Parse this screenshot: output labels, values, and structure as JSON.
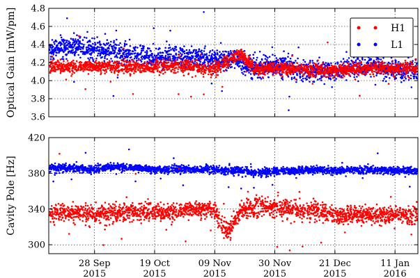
{
  "chart_data": {
    "type": "scatter",
    "x_axis": {
      "type": "date",
      "tick_labels": [
        {
          "date": "2015-09-28",
          "line1": "28 Sep",
          "line2": "2015"
        },
        {
          "date": "2015-10-19",
          "line1": "19 Oct",
          "line2": "2015"
        },
        {
          "date": "2015-11-09",
          "line1": "09 Nov",
          "line2": "2015"
        },
        {
          "date": "2015-11-30",
          "line1": "30 Nov",
          "line2": "2015"
        },
        {
          "date": "2015-12-21",
          "line1": "21 Dec",
          "line2": "2015"
        },
        {
          "date": "2016-01-11",
          "line1": "11 Jan",
          "line2": "2016"
        }
      ],
      "xlim": [
        "2015-09-12",
        "2016-01-19"
      ],
      "grid": true
    },
    "colors": {
      "H1": "#ff0000",
      "L1": "#0000ff"
    },
    "legend": {
      "placement": "top-right",
      "entries": [
        "H1",
        "L1"
      ]
    },
    "panels": [
      {
        "id": "optical-gain",
        "ylabel": "Optical Gain [mW/pm]",
        "ylim": [
          3.6,
          4.8
        ],
        "yticks": [
          "3.6",
          "3.8",
          "4.0",
          "4.2",
          "4.4",
          "4.6",
          "4.8"
        ],
        "grid": true,
        "series": [
          {
            "name": "H1",
            "trend": [
              [
                "2015-09-12",
                4.15
              ],
              [
                "2015-09-20",
                4.16
              ],
              [
                "2015-09-28",
                4.15
              ],
              [
                "2015-10-05",
                4.16
              ],
              [
                "2015-10-12",
                4.15
              ],
              [
                "2015-10-19",
                4.14
              ],
              [
                "2015-10-26",
                4.17
              ],
              [
                "2015-11-02",
                4.14
              ],
              [
                "2015-11-09",
                4.13
              ],
              [
                "2015-11-14",
                4.22
              ],
              [
                "2015-11-18",
                4.3
              ],
              [
                "2015-11-23",
                4.12
              ],
              [
                "2015-11-30",
                4.14
              ],
              [
                "2015-12-07",
                4.13
              ],
              [
                "2015-12-14",
                4.12
              ],
              [
                "2015-12-21",
                4.11
              ],
              [
                "2015-12-28",
                4.13
              ],
              [
                "2016-01-04",
                4.14
              ],
              [
                "2016-01-11",
                4.13
              ],
              [
                "2016-01-19",
                4.14
              ]
            ],
            "spread": 0.05
          },
          {
            "name": "L1",
            "trend": [
              [
                "2015-09-12",
                4.33
              ],
              [
                "2015-09-20",
                4.38
              ],
              [
                "2015-09-28",
                4.35
              ],
              [
                "2015-10-05",
                4.32
              ],
              [
                "2015-10-12",
                4.29
              ],
              [
                "2015-10-19",
                4.25
              ],
              [
                "2015-10-26",
                4.27
              ],
              [
                "2015-11-02",
                4.25
              ],
              [
                "2015-11-09",
                4.22
              ],
              [
                "2015-11-16",
                4.24
              ],
              [
                "2015-11-23",
                4.15
              ],
              [
                "2015-11-30",
                4.17
              ],
              [
                "2015-12-07",
                4.13
              ],
              [
                "2015-12-14",
                4.12
              ],
              [
                "2015-12-21",
                4.1
              ],
              [
                "2015-12-28",
                4.14
              ],
              [
                "2016-01-04",
                4.16
              ],
              [
                "2016-01-11",
                4.11
              ],
              [
                "2016-01-19",
                4.12
              ]
            ],
            "spread": 0.08
          }
        ]
      },
      {
        "id": "cavity-pole",
        "ylabel": "Cavity Pole [Hz]",
        "ylim": [
          290,
          420
        ],
        "yticks": [
          "300",
          "340",
          "380",
          "420"
        ],
        "grid": true,
        "series": [
          {
            "name": "H1",
            "trend": [
              [
                "2015-09-12",
                335
              ],
              [
                "2015-09-20",
                336
              ],
              [
                "2015-09-28",
                334
              ],
              [
                "2015-10-05",
                336
              ],
              [
                "2015-10-12",
                337
              ],
              [
                "2015-10-19",
                336
              ],
              [
                "2015-10-26",
                338
              ],
              [
                "2015-11-02",
                339
              ],
              [
                "2015-11-09",
                340
              ],
              [
                "2015-11-12",
                318
              ],
              [
                "2015-11-14",
                316
              ],
              [
                "2015-11-18",
                340
              ],
              [
                "2015-11-23",
                343
              ],
              [
                "2015-11-30",
                342
              ],
              [
                "2015-12-07",
                338
              ],
              [
                "2015-12-14",
                339
              ],
              [
                "2015-12-21",
                332
              ],
              [
                "2015-12-28",
                334
              ],
              [
                "2016-01-04",
                333
              ],
              [
                "2016-01-11",
                334
              ],
              [
                "2016-01-19",
                333
              ]
            ],
            "spread": 7
          },
          {
            "name": "L1",
            "trend": [
              [
                "2015-09-12",
                386
              ],
              [
                "2015-09-20",
                386
              ],
              [
                "2015-09-28",
                384
              ],
              [
                "2015-10-05",
                388
              ],
              [
                "2015-10-12",
                386
              ],
              [
                "2015-10-19",
                384
              ],
              [
                "2015-10-26",
                385
              ],
              [
                "2015-11-02",
                384
              ],
              [
                "2015-11-09",
                384
              ],
              [
                "2015-11-16",
                383
              ],
              [
                "2015-11-23",
                381
              ],
              [
                "2015-11-30",
                382
              ],
              [
                "2015-12-07",
                383
              ],
              [
                "2015-12-14",
                384
              ],
              [
                "2015-12-21",
                383
              ],
              [
                "2015-12-28",
                384
              ],
              [
                "2016-01-04",
                384
              ],
              [
                "2016-01-11",
                383
              ],
              [
                "2016-01-19",
                383
              ]
            ],
            "spread": 3
          }
        ]
      }
    ]
  }
}
